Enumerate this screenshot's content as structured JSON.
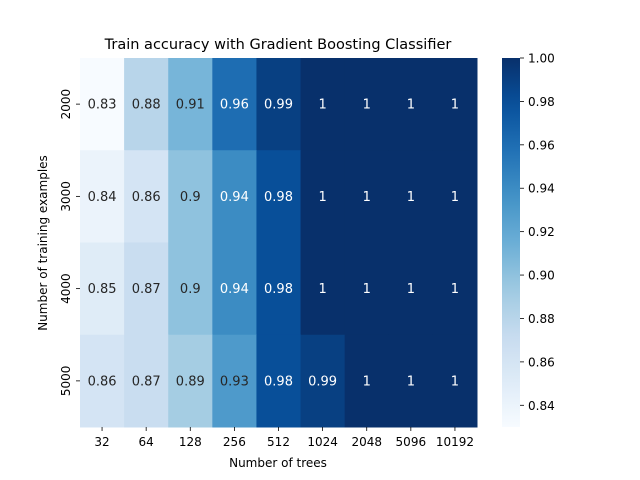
{
  "chart_data": {
    "type": "heatmap",
    "title": "Train accuracy with Gradient Boosting Classifier",
    "xlabel": "Number of trees",
    "ylabel": "Number of training examples",
    "x_categories": [
      "32",
      "64",
      "128",
      "256",
      "512",
      "1024",
      "2048",
      "5096",
      "10192"
    ],
    "y_categories": [
      "2000",
      "3000",
      "4000",
      "5000"
    ],
    "values": [
      [
        0.83,
        0.88,
        0.91,
        0.96,
        0.99,
        1.0,
        1.0,
        1.0,
        1.0
      ],
      [
        0.84,
        0.86,
        0.9,
        0.94,
        0.98,
        1.0,
        1.0,
        1.0,
        1.0
      ],
      [
        0.85,
        0.87,
        0.9,
        0.94,
        0.98,
        1.0,
        1.0,
        1.0,
        1.0
      ],
      [
        0.86,
        0.87,
        0.89,
        0.93,
        0.98,
        0.99,
        1.0,
        1.0,
        1.0
      ]
    ],
    "annotations": [
      [
        "0.83",
        "0.88",
        "0.91",
        "0.96",
        "0.99",
        "1",
        "1",
        "1",
        "1"
      ],
      [
        "0.84",
        "0.86",
        "0.9",
        "0.94",
        "0.98",
        "1",
        "1",
        "1",
        "1"
      ],
      [
        "0.85",
        "0.87",
        "0.9",
        "0.94",
        "0.98",
        "1",
        "1",
        "1",
        "1"
      ],
      [
        "0.86",
        "0.87",
        "0.89",
        "0.93",
        "0.98",
        "0.99",
        "1",
        "1",
        "1"
      ]
    ],
    "colormap": "Blues",
    "vmin": 0.83,
    "vmax": 1.0,
    "colorbar_ticks": [
      "0.84",
      "0.86",
      "0.88",
      "0.90",
      "0.92",
      "0.94",
      "0.96",
      "0.98",
      "1.00"
    ],
    "colorbar_tick_values": [
      0.84,
      0.86,
      0.88,
      0.9,
      0.92,
      0.94,
      0.96,
      0.98,
      1.0
    ]
  }
}
